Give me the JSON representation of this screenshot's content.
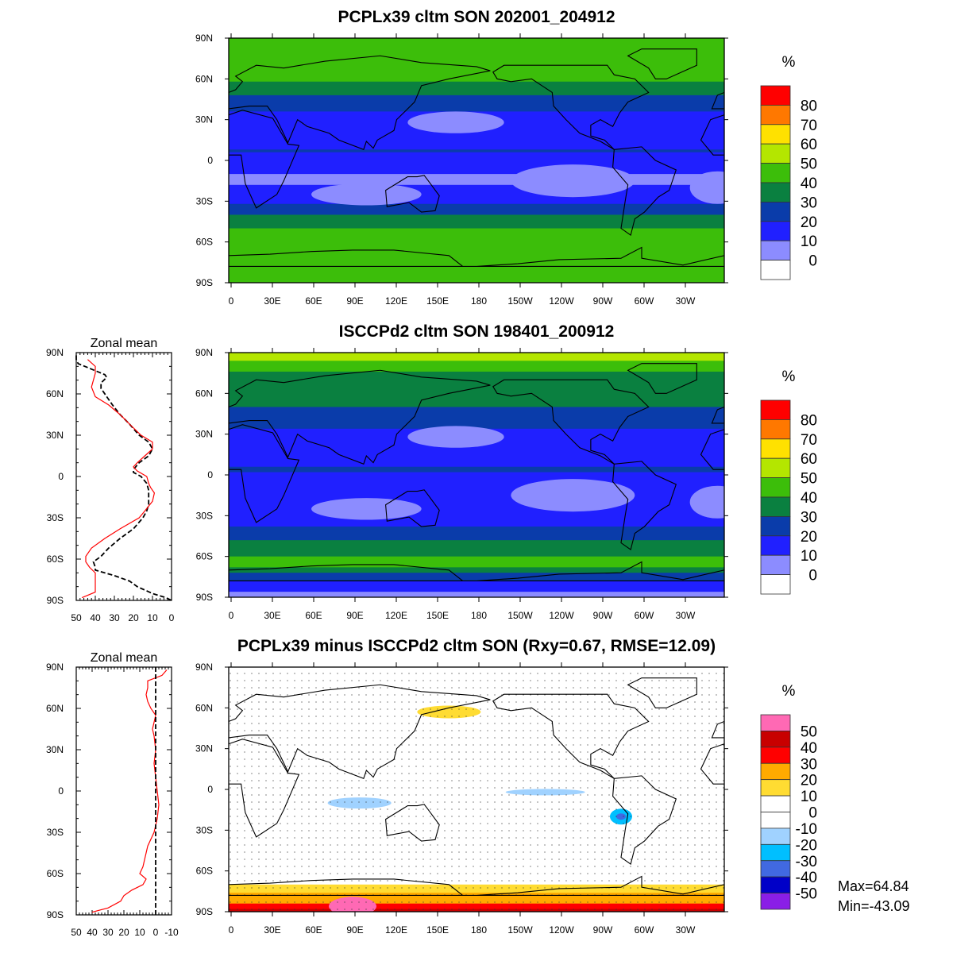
{
  "chart_data": [
    {
      "type": "heatmap",
      "title": "PCPLx39 cltm SON 202001_204912",
      "units": "%",
      "levels": [
        0,
        10,
        20,
        30,
        40,
        50,
        60,
        70,
        80
      ],
      "colors": [
        "#ffffff",
        "#8c8cff",
        "#2020ff",
        "#0a3caa",
        "#0a8040",
        "#3cbe0a",
        "#b4e600",
        "#ffe100",
        "#ff7800",
        "#ff0000"
      ],
      "source_series": "model"
    },
    {
      "type": "heatmap",
      "title": "ISCCPd2 cltm SON 198401_200912",
      "units": "%",
      "levels": [
        0,
        10,
        20,
        30,
        40,
        50,
        60,
        70,
        80
      ],
      "colors": [
        "#ffffff",
        "#8c8cff",
        "#2020ff",
        "#0a3caa",
        "#0a8040",
        "#3cbe0a",
        "#b4e600",
        "#ffe100",
        "#ff7800",
        "#ff0000"
      ],
      "source_series": "obs"
    },
    {
      "type": "heatmap",
      "title": "PCPLx39 minus ISCCPd2 cltm SON (Rxy=0.67, RMSE=12.09)",
      "units": "%",
      "levels": [
        -50,
        -40,
        -30,
        -20,
        -10,
        0,
        10,
        20,
        30,
        40,
        50
      ],
      "colors": [
        "#8a1ee6",
        "#0000c8",
        "#4169e1",
        "#00bfff",
        "#a0d2ff",
        "#ffffff",
        "#ffffff",
        "#ffdc32",
        "#ffaa00",
        "#ff0000",
        "#c80000",
        "#ff69b4"
      ],
      "max_label": "Max=64.84",
      "min_label": "Min=-43.09",
      "source_series": "diff"
    },
    {
      "type": "line",
      "title": "Zonal mean",
      "xlim": [
        50,
        0
      ],
      "ylim": [
        -90,
        90
      ],
      "series": [
        {
          "name": "obs",
          "style": "black-dashed",
          "lat": [
            88,
            85,
            82,
            78,
            74,
            72,
            68,
            64,
            58,
            52,
            45,
            38,
            30,
            25,
            20,
            15,
            10,
            5,
            3,
            0,
            -5,
            -10,
            -15,
            -20,
            -25,
            -30,
            -38,
            -45,
            -52,
            -58,
            -62,
            -66,
            -68,
            -72,
            -76,
            -80,
            -85,
            -88,
            -90
          ],
          "values": [
            50,
            50,
            49,
            42,
            35,
            34,
            37,
            37,
            34,
            31,
            27,
            22,
            17,
            12,
            10,
            12,
            17,
            20,
            20,
            16,
            13,
            12,
            12,
            12,
            13,
            15,
            20,
            27,
            33,
            37,
            41,
            40,
            40,
            30,
            22,
            18,
            10,
            3,
            0
          ]
        },
        {
          "name": "model",
          "style": "red",
          "lat": [
            85,
            80,
            75,
            65,
            58,
            52,
            45,
            38,
            30,
            25,
            20,
            15,
            10,
            7,
            4,
            0,
            -5,
            -8,
            -12,
            -18,
            -25,
            -30,
            -38,
            -45,
            -52,
            -58,
            -62,
            -66,
            -70,
            -75,
            -80,
            -84,
            -88
          ],
          "values": [
            44,
            40,
            40,
            42,
            40,
            33,
            27,
            22,
            16,
            10,
            10,
            14,
            18,
            20,
            18,
            13,
            12,
            11,
            9,
            10,
            14,
            17,
            27,
            35,
            42,
            45,
            45,
            43,
            40,
            40,
            40,
            40,
            47
          ]
        }
      ]
    },
    {
      "type": "line",
      "title": "Zonal mean",
      "xlim": [
        50,
        -10
      ],
      "ylim": [
        -90,
        90
      ],
      "series": [
        {
          "name": "diff",
          "style": "red",
          "lat": [
            88,
            84,
            80,
            75,
            70,
            65,
            60,
            55,
            50,
            45,
            40,
            30,
            20,
            10,
            0,
            -10,
            -20,
            -30,
            -40,
            -50,
            -55,
            -60,
            -64,
            -68,
            -72,
            -76,
            -80,
            -85,
            -88
          ],
          "values": [
            -7,
            -4,
            5,
            5,
            6,
            5,
            3,
            0,
            1,
            2,
            1,
            0,
            1,
            0,
            -1,
            -2,
            -1,
            1,
            5,
            7,
            8,
            10,
            6,
            8,
            15,
            20,
            22,
            30,
            40
          ]
        },
        {
          "name": "zero",
          "style": "black-dashed",
          "lat": [
            90,
            -90
          ],
          "values": [
            0,
            0
          ]
        }
      ]
    }
  ],
  "axes": {
    "lat_labels": [
      "90N",
      "60N",
      "30N",
      "0",
      "30S",
      "60S",
      "90S"
    ],
    "lon_labels": [
      "0",
      "30E",
      "60E",
      "90E",
      "120E",
      "150E",
      "180",
      "150W",
      "120W",
      "90W",
      "60W",
      "30W"
    ],
    "zonal_x_labels_1": [
      "50",
      "40",
      "30",
      "20",
      "10",
      "0"
    ],
    "zonal_x_labels_2": [
      "50",
      "40",
      "30",
      "20",
      "10",
      "0",
      "-10"
    ],
    "colorbar_labels_1": [
      "80",
      "70",
      "60",
      "50",
      "40",
      "30",
      "20",
      "10",
      "0"
    ],
    "colorbar_labels_2": [
      "50",
      "40",
      "30",
      "20",
      "10",
      "0",
      "-10",
      "-20",
      "-30",
      "-40",
      "-50"
    ],
    "units": "%"
  }
}
